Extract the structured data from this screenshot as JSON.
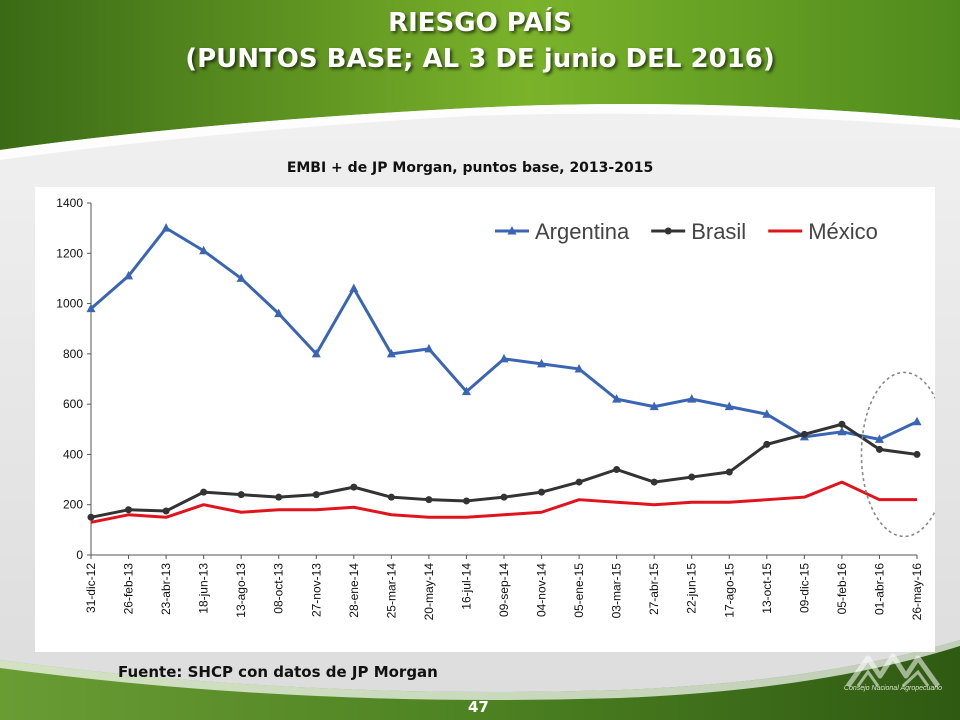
{
  "slide": {
    "title_line1": "RIESGO PAÍS",
    "title_line2": "(PUNTOS BASE; AL 3 DE junio DEL 2016)",
    "caption": "EMBI + de JP Morgan, puntos base, 2013-2015",
    "source": "Fuente: SHCP con datos de JP Morgan",
    "page_number": "47",
    "logo_text": "Consejo Nacional Agropecuario",
    "colors": {
      "green_dark": "#3d6a17",
      "green_light": "#8dbd2d",
      "footer_green": "#5c8f2a"
    }
  },
  "chart_data": {
    "type": "line",
    "title": "",
    "xlabel": "",
    "ylabel": "",
    "ylim": [
      0,
      1400
    ],
    "yticks": [
      0,
      200,
      400,
      600,
      800,
      1000,
      1200,
      1400
    ],
    "grid": false,
    "legend_position": "top-right",
    "categories": [
      "31-dic-12",
      "26-feb-13",
      "23-abr-13",
      "18-jun-13",
      "13-ago-13",
      "08-oct-13",
      "27-nov-13",
      "28-ene-14",
      "25-mar-14",
      "20-may-14",
      "16-jul-14",
      "09-sep-14",
      "04-nov-14",
      "05-ene-15",
      "03-mar-15",
      "27-abr-15",
      "22-jun-15",
      "17-ago-15",
      "13-oct-15",
      "09-dic-15",
      "05-feb-16",
      "01-abr-16",
      "26-may-16"
    ],
    "series": [
      {
        "name": "Argentina",
        "color": "#3a65b5",
        "marker": "triangle",
        "values": [
          980,
          1110,
          1300,
          1210,
          1100,
          960,
          800,
          1060,
          800,
          820,
          650,
          780,
          760,
          740,
          620,
          590,
          620,
          590,
          560,
          470,
          490,
          460,
          530
        ]
      },
      {
        "name": "Brasil",
        "color": "#333333",
        "marker": "circle",
        "values": [
          150,
          180,
          175,
          250,
          240,
          230,
          240,
          270,
          230,
          220,
          215,
          230,
          250,
          290,
          340,
          290,
          310,
          330,
          440,
          480,
          520,
          420,
          400
        ]
      },
      {
        "name": "México",
        "color": "#e0141c",
        "marker": "none",
        "values": [
          130,
          160,
          150,
          200,
          170,
          180,
          180,
          190,
          160,
          150,
          150,
          160,
          170,
          220,
          210,
          200,
          210,
          210,
          220,
          230,
          290,
          220,
          220
        ]
      }
    ],
    "annotation": {
      "type": "dashed-ellipse",
      "around": [
        "01-abr-16",
        "26-may-16"
      ]
    }
  }
}
